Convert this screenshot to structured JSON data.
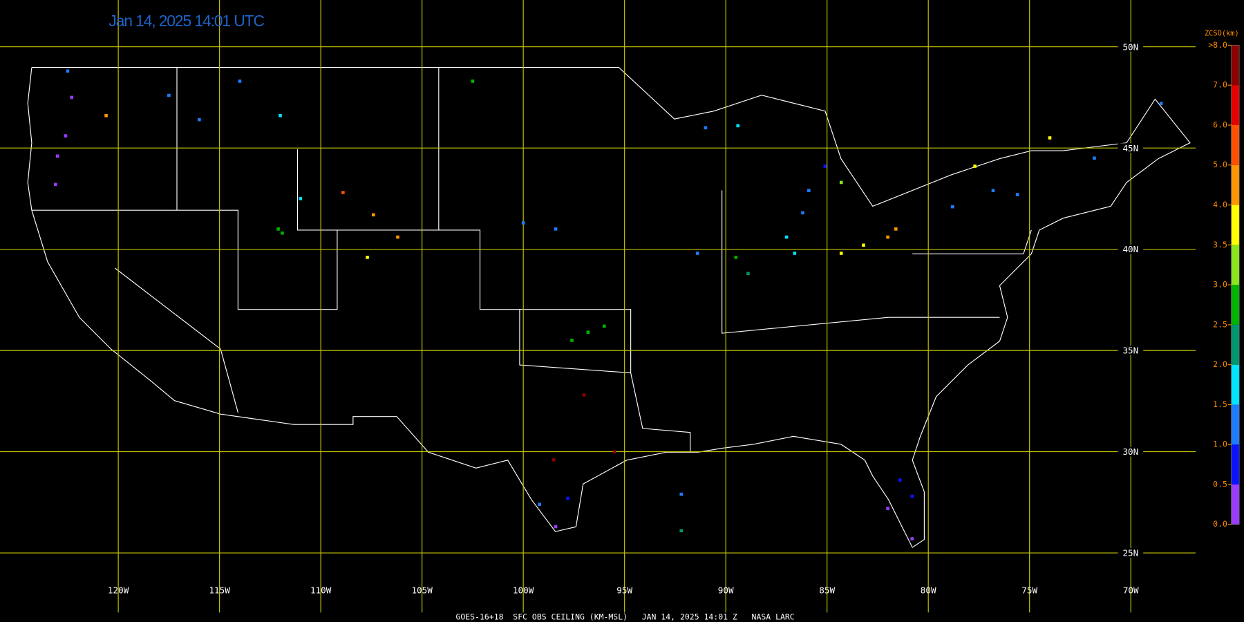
{
  "title": "Jan 14, 2025 14:01 UTC",
  "footer": "GOES-16+18  SFC OBS CEILING (KM-MSL)   JAN 14, 2025 14:01 Z   NASA LARC",
  "map": {
    "xlim": [
      -125.84,
      -66.8
    ],
    "ylim": [
      21.59,
      52.31
    ],
    "grid_color": "#c8c800",
    "lon_ticks": [
      {
        "value": -120,
        "label": "120W"
      },
      {
        "value": -115,
        "label": "115W"
      },
      {
        "value": -110,
        "label": "110W"
      },
      {
        "value": -105,
        "label": "105W"
      },
      {
        "value": -100,
        "label": "100W"
      },
      {
        "value": -95,
        "label": "95W"
      },
      {
        "value": -90,
        "label": "90W"
      },
      {
        "value": -85,
        "label": "85W"
      },
      {
        "value": -80,
        "label": "80W"
      },
      {
        "value": -75,
        "label": "75W"
      },
      {
        "value": -70,
        "label": "70W"
      }
    ],
    "lat_ticks": [
      {
        "value": 50,
        "label": "50N"
      },
      {
        "value": 45,
        "label": "45N"
      },
      {
        "value": 40,
        "label": "40N"
      },
      {
        "value": 35,
        "label": "35N"
      },
      {
        "value": 30,
        "label": "30N"
      },
      {
        "value": 25,
        "label": "25N"
      }
    ],
    "stations": [
      {
        "lon": -122.3,
        "lat": 47.5,
        "value": 0.3
      },
      {
        "lon": -122.6,
        "lat": 45.6,
        "value": 0.3
      },
      {
        "lon": -123.0,
        "lat": 44.6,
        "value": 0.4
      },
      {
        "lon": -123.1,
        "lat": 43.2,
        "value": 0.3
      },
      {
        "lon": -122.5,
        "lat": 48.8,
        "value": 1.0
      },
      {
        "lon": -120.6,
        "lat": 46.6,
        "value": 4.6
      },
      {
        "lon": -117.5,
        "lat": 47.6,
        "value": 1.0
      },
      {
        "lon": -116.0,
        "lat": 46.4,
        "value": 1.2
      },
      {
        "lon": -114.0,
        "lat": 48.3,
        "value": 1.3
      },
      {
        "lon": -112.0,
        "lat": 46.6,
        "value": 1.6
      },
      {
        "lon": -112.1,
        "lat": 41.0,
        "value": 2.7
      },
      {
        "lon": -111.9,
        "lat": 40.8,
        "value": 2.8
      },
      {
        "lon": -111.0,
        "lat": 42.5,
        "value": 1.8
      },
      {
        "lon": -107.4,
        "lat": 41.7,
        "value": 4.3
      },
      {
        "lon": -106.2,
        "lat": 40.6,
        "value": 4.2
      },
      {
        "lon": -108.9,
        "lat": 42.8,
        "value": 5.7
      },
      {
        "lon": -107.7,
        "lat": 39.6,
        "value": 3.8
      },
      {
        "lon": -102.5,
        "lat": 48.3,
        "value": 2.6
      },
      {
        "lon": -100.0,
        "lat": 41.3,
        "value": 1.2
      },
      {
        "lon": -98.4,
        "lat": 41.0,
        "value": 1.2
      },
      {
        "lon": -96.8,
        "lat": 35.9,
        "value": 2.8
      },
      {
        "lon": -96.0,
        "lat": 36.2,
        "value": 2.9
      },
      {
        "lon": -97.6,
        "lat": 35.5,
        "value": 2.6
      },
      {
        "lon": -97.0,
        "lat": 32.8,
        "value": 7.5
      },
      {
        "lon": -98.5,
        "lat": 29.6,
        "value": 7.8
      },
      {
        "lon": -95.5,
        "lat": 30.0,
        "value": 7.4
      },
      {
        "lon": -98.4,
        "lat": 26.3,
        "value": 0.3
      },
      {
        "lon": -97.8,
        "lat": 27.7,
        "value": 0.9
      },
      {
        "lon": -99.2,
        "lat": 27.4,
        "value": 1.3
      },
      {
        "lon": -92.2,
        "lat": 27.9,
        "value": 1.0
      },
      {
        "lon": -92.2,
        "lat": 26.1,
        "value": 2.3
      },
      {
        "lon": -91.4,
        "lat": 39.8,
        "value": 1.1
      },
      {
        "lon": -88.9,
        "lat": 38.8,
        "value": 2.1
      },
      {
        "lon": -89.5,
        "lat": 39.6,
        "value": 2.8
      },
      {
        "lon": -86.6,
        "lat": 39.8,
        "value": 1.7
      },
      {
        "lon": -87.0,
        "lat": 40.6,
        "value": 1.8
      },
      {
        "lon": -86.2,
        "lat": 41.8,
        "value": 1.1
      },
      {
        "lon": -84.3,
        "lat": 39.8,
        "value": 3.7
      },
      {
        "lon": -83.2,
        "lat": 40.2,
        "value": 3.6
      },
      {
        "lon": -82.0,
        "lat": 40.6,
        "value": 4.2
      },
      {
        "lon": -81.6,
        "lat": 41.0,
        "value": 4.3
      },
      {
        "lon": -85.9,
        "lat": 42.9,
        "value": 1.0
      },
      {
        "lon": -85.1,
        "lat": 44.1,
        "value": 0.9
      },
      {
        "lon": -84.3,
        "lat": 43.3,
        "value": 3.3
      },
      {
        "lon": -78.8,
        "lat": 42.1,
        "value": 1.3
      },
      {
        "lon": -76.8,
        "lat": 42.9,
        "value": 1.3
      },
      {
        "lon": -75.6,
        "lat": 42.7,
        "value": 1.2
      },
      {
        "lon": -77.7,
        "lat": 44.1,
        "value": 3.6
      },
      {
        "lon": -74.0,
        "lat": 45.5,
        "value": 3.8
      },
      {
        "lon": -71.8,
        "lat": 44.5,
        "value": 1.3
      },
      {
        "lon": -68.5,
        "lat": 47.2,
        "value": 1.4
      },
      {
        "lon": -82.0,
        "lat": 27.2,
        "value": 0.3
      },
      {
        "lon": -80.8,
        "lat": 25.7,
        "value": 0.3
      },
      {
        "lon": -81.4,
        "lat": 28.6,
        "value": 0.8
      },
      {
        "lon": -80.8,
        "lat": 27.8,
        "value": 0.9
      },
      {
        "lon": -91.0,
        "lat": 46.0,
        "value": 1.1
      },
      {
        "lon": -89.4,
        "lat": 46.1,
        "value": 1.8
      }
    ]
  },
  "colorbar": {
    "title": "ZCSO(km)",
    "levels": [
      {
        "value": 0,
        "label": "0.0"
      },
      {
        "value": 0.5,
        "label": "0.5"
      },
      {
        "value": 1,
        "label": "1.0"
      },
      {
        "value": 1.5,
        "label": "1.5"
      },
      {
        "value": 2,
        "label": "2.0"
      },
      {
        "value": 2.5,
        "label": "2.5"
      },
      {
        "value": 3,
        "label": "3.0"
      },
      {
        "value": 3.5,
        "label": "3.5"
      },
      {
        "value": 4,
        "label": "4.0"
      },
      {
        "value": 5,
        "label": "5.0"
      },
      {
        "value": 6,
        "label": "6.0"
      },
      {
        "value": 7,
        "label": "7.0"
      },
      {
        "value": 8,
        "label": ">8.0"
      }
    ],
    "colors": [
      "#9a3cff",
      "#0a14ff",
      "#1e7cff",
      "#00e4ff",
      "#00966e",
      "#00b400",
      "#8ce61e",
      "#ffff00",
      "#ff9600",
      "#ff5000",
      "#e60000",
      "#8c0000"
    ]
  }
}
